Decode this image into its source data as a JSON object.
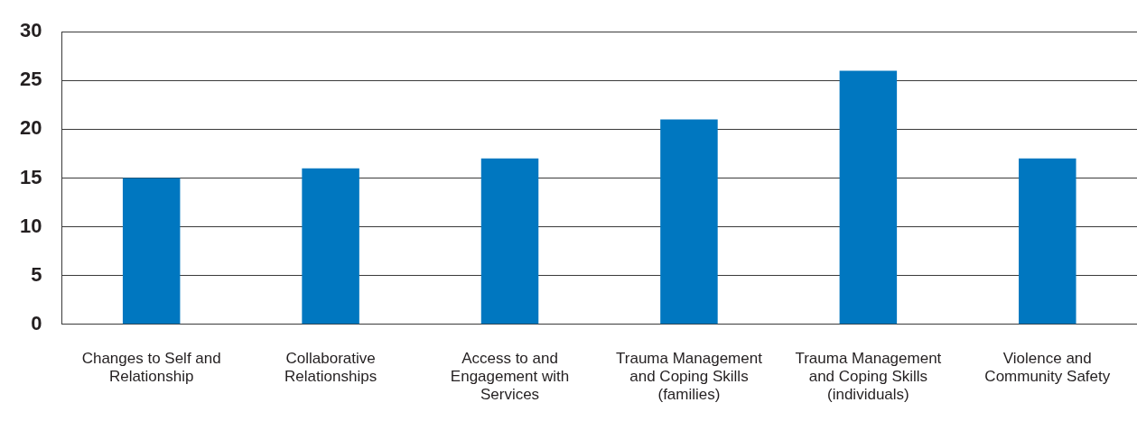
{
  "chart_data": {
    "type": "bar",
    "categories": [
      "Changes to Self and Relationship",
      "Collaborative Relationships",
      "Access to and Engagement with Services",
      "Trauma Management and Coping Skills (families)",
      "Trauma Management and Coping Skills (individuals)",
      "Violence and Community Safety"
    ],
    "values": [
      15,
      16,
      17,
      21,
      26,
      17
    ],
    "color": "#0077c0",
    "ylim": [
      0,
      30
    ],
    "yticks": [
      0,
      5,
      10,
      15,
      20,
      25,
      30
    ],
    "grid": "y",
    "legend": false
  }
}
